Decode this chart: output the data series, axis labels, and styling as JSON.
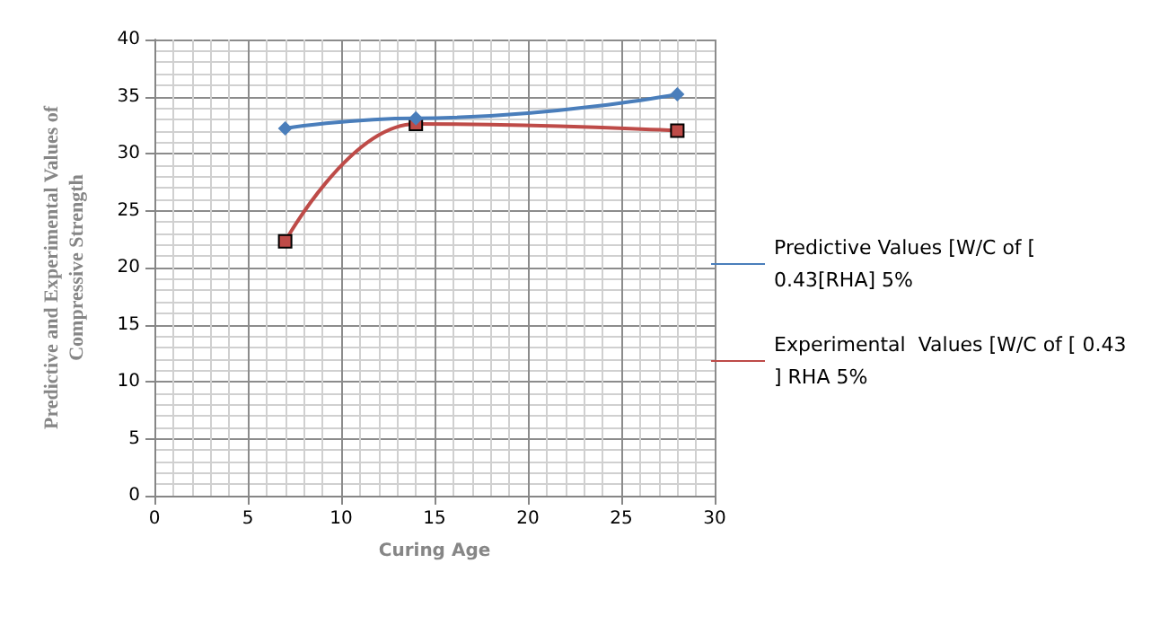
{
  "chart_data": {
    "type": "line",
    "xlabel": "Curing Age",
    "ylabel": "Predictive and Experimental Values of\nCompressive Strength",
    "xlim": [
      0,
      30
    ],
    "xticks": [
      0,
      5,
      10,
      15,
      20,
      25,
      30
    ],
    "ylim": [
      0,
      40
    ],
    "yticks": [
      0,
      5,
      10,
      15,
      20,
      25,
      30,
      35,
      40
    ],
    "grid": true,
    "legend": "right",
    "series": [
      {
        "name": "Predictive Values [W/C of [ 0.43[RHA] 5%",
        "color": "#4a7ebb",
        "marker": "diamond",
        "x": [
          7,
          14,
          28
        ],
        "values": [
          32.2,
          33.1,
          35.2
        ]
      },
      {
        "name": "Experimental  Values [W/C of [ 0.43] RHA 5%",
        "color": "#be4b48",
        "marker": "square",
        "x": [
          7,
          14,
          28
        ],
        "values": [
          22.3,
          32.6,
          32
        ]
      }
    ]
  }
}
